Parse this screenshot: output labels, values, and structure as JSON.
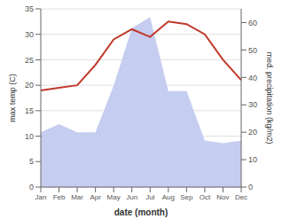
{
  "chart_data": {
    "type": "line",
    "xlabel": "date (month)",
    "ylabel": "max temp (C)",
    "y2label": "med. precipitation (kg/m2)",
    "categories": [
      "Jan",
      "Feb",
      "Mar",
      "Apr",
      "May",
      "Jun",
      "Jul",
      "Aug",
      "Sep",
      "Oct",
      "Nov",
      "Dec"
    ],
    "series": [
      {
        "type": "area",
        "axis": "y2",
        "color": "#c5cdf0",
        "values": [
          20,
          23,
          20,
          20,
          37,
          58,
          62,
          35,
          35,
          17,
          16,
          17
        ]
      },
      {
        "type": "line",
        "color": "#c0392b",
        "values": [
          19,
          19.5,
          20,
          24,
          29,
          31,
          29.5,
          32.5,
          32,
          30,
          25,
          21
        ]
      }
    ],
    "ylim": [
      0,
      35
    ],
    "yticks": [
      0,
      5,
      10,
      15,
      20,
      25,
      30,
      35
    ],
    "y2lim": [
      0,
      65
    ],
    "y2ticks": [
      0,
      10,
      20,
      30,
      40,
      50,
      60
    ],
    "grid": true
  }
}
